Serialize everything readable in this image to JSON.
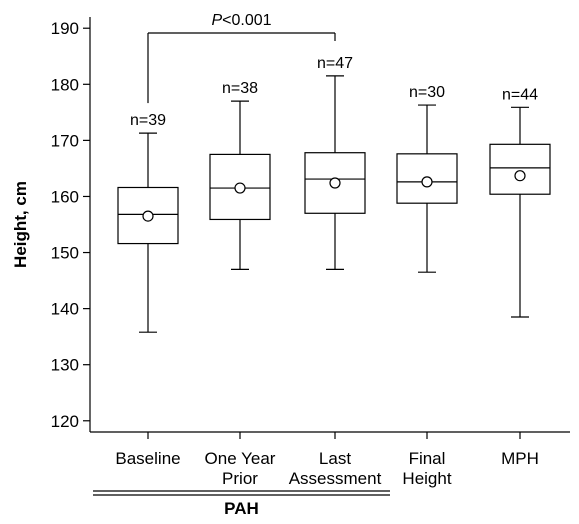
{
  "chart_data": {
    "type": "box",
    "ylabel": "Height, cm",
    "ylim": [
      118,
      192
    ],
    "yticks": [
      120,
      130,
      140,
      150,
      160,
      170,
      180,
      190
    ],
    "categories": [
      {
        "label": [
          "Baseline"
        ],
        "min": 135.8,
        "q1": 151.6,
        "median": 156.8,
        "q3": 161.6,
        "max": 171.3,
        "mean": 156.5,
        "n": "n=39"
      },
      {
        "label": [
          "One Year",
          "Prior"
        ],
        "min": 147.0,
        "q1": 155.9,
        "median": 161.5,
        "q3": 167.5,
        "max": 177.0,
        "mean": 161.5,
        "n": "n=38"
      },
      {
        "label": [
          "Last",
          "Assessment"
        ],
        "min": 147.0,
        "q1": 157.0,
        "median": 163.1,
        "q3": 167.8,
        "max": 181.5,
        "mean": 162.4,
        "n": "n=47"
      },
      {
        "label": [
          "Final",
          "Height"
        ],
        "min": 146.5,
        "q1": 158.8,
        "median": 162.6,
        "q3": 167.6,
        "max": 176.3,
        "mean": 162.6,
        "n": "n=30"
      },
      {
        "label": [
          "MPH"
        ],
        "min": 138.5,
        "q1": 160.4,
        "median": 165.1,
        "q3": 169.3,
        "max": 175.9,
        "mean": 163.7,
        "n": "n=44"
      }
    ],
    "group_label": "PAH",
    "significance": {
      "from": 0,
      "to": 2,
      "label_italic": "P",
      "label_rest": "<0.001"
    }
  }
}
